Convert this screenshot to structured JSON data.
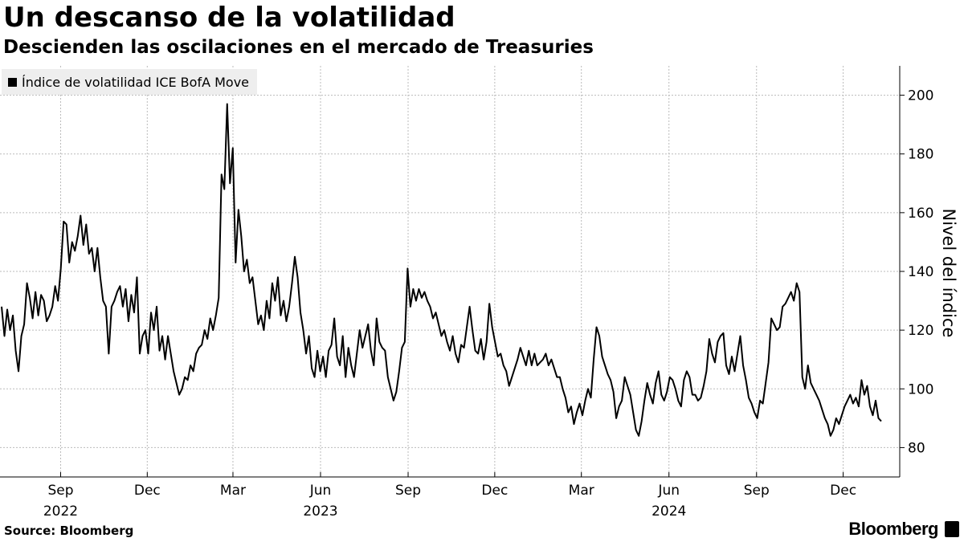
{
  "chart_data": {
    "type": "line",
    "title": "Un descanso de la volatilidad",
    "subtitle": "Descienden las oscilaciones en el mercado de Treasuries",
    "ylabel": "Nivel del índice",
    "xlabel": "",
    "ylim": [
      70,
      210
    ],
    "yticks": [
      80,
      100,
      120,
      140,
      160,
      180,
      200
    ],
    "y_axis_side": "right",
    "grid": true,
    "legend_position": "top-left",
    "series": [
      {
        "name": "Índice de volatilidad ICE BofA Move",
        "x_start": "2022-07-01",
        "x_end": "2025-01-10",
        "values": [
          128,
          118,
          127,
          120,
          125,
          113,
          106,
          118,
          122,
          136,
          131,
          124,
          133,
          125,
          132,
          130,
          123,
          125,
          128,
          135,
          130,
          141,
          157,
          156,
          143,
          150,
          147,
          152,
          159,
          149,
          156,
          146,
          148,
          140,
          148,
          138,
          130,
          128,
          112,
          128,
          130,
          133,
          135,
          128,
          134,
          123,
          132,
          126,
          138,
          112,
          118,
          120,
          112,
          126,
          120,
          128,
          113,
          118,
          110,
          118,
          112,
          106,
          102,
          98,
          100,
          104,
          103,
          108,
          106,
          112,
          114,
          115,
          120,
          117,
          124,
          120,
          125,
          131,
          173,
          168,
          197,
          170,
          182,
          143,
          161,
          152,
          140,
          144,
          136,
          138,
          130,
          122,
          125,
          120,
          130,
          124,
          136,
          130,
          138,
          125,
          130,
          123,
          128,
          136,
          145,
          138,
          126,
          120,
          112,
          118,
          107,
          104,
          113,
          106,
          111,
          104,
          113,
          115,
          124,
          111,
          108,
          118,
          104,
          114,
          108,
          104,
          112,
          120,
          114,
          118,
          122,
          113,
          108,
          124,
          116,
          114,
          113,
          104,
          100,
          96,
          99,
          106,
          114,
          116,
          141,
          128,
          134,
          130,
          134,
          131,
          133,
          130,
          128,
          124,
          126,
          122,
          118,
          120,
          116,
          113,
          118,
          112,
          109,
          115,
          114,
          121,
          128,
          120,
          113,
          112,
          117,
          110,
          116,
          129,
          121,
          116,
          111,
          112,
          108,
          106,
          101,
          104,
          107,
          110,
          114,
          111,
          108,
          113,
          108,
          112,
          108,
          109,
          110,
          112,
          108,
          110,
          107,
          104,
          104,
          100,
          97,
          92,
          94,
          88,
          92,
          95,
          91,
          96,
          100,
          97,
          110,
          121,
          118,
          111,
          108,
          105,
          103,
          99,
          90,
          94,
          96,
          104,
          101,
          98,
          92,
          86,
          84,
          89,
          96,
          102,
          98,
          95,
          102,
          106,
          98,
          96,
          99,
          104,
          103,
          100,
          96,
          94,
          103,
          106,
          104,
          98,
          98,
          96,
          97,
          101,
          106,
          117,
          112,
          109,
          116,
          118,
          119,
          108,
          105,
          111,
          106,
          112,
          118,
          108,
          103,
          97,
          95,
          92,
          90,
          96,
          95,
          102,
          109,
          124,
          122,
          120,
          121,
          128,
          129,
          131,
          133,
          130,
          136,
          133,
          104,
          100,
          108,
          102,
          100,
          98,
          96,
          93,
          90,
          88,
          84,
          86,
          90,
          88,
          91,
          94,
          96,
          98,
          95,
          97,
          94,
          103,
          98,
          101,
          94,
          91,
          96,
          90,
          89
        ]
      }
    ],
    "x_tick_labels": [
      {
        "label": "Sep",
        "date": "2022-09-01"
      },
      {
        "label": "Dec",
        "date": "2022-12-01"
      },
      {
        "label": "Mar",
        "date": "2023-03-01"
      },
      {
        "label": "Jun",
        "date": "2023-06-01"
      },
      {
        "label": "Sep",
        "date": "2023-09-01"
      },
      {
        "label": "Dec",
        "date": "2023-12-01"
      },
      {
        "label": "Mar",
        "date": "2024-03-01"
      },
      {
        "label": "Jun",
        "date": "2024-06-01"
      },
      {
        "label": "Sep",
        "date": "2024-09-01"
      },
      {
        "label": "Dec",
        "date": "2024-12-01"
      }
    ],
    "year_labels": [
      {
        "label": "2022",
        "date": "2022-09-01"
      },
      {
        "label": "2023",
        "date": "2023-06-01"
      },
      {
        "label": "2024",
        "date": "2024-06-01"
      }
    ],
    "colors": {
      "line": "#000000",
      "grid": "#bbbbbb",
      "axis": "#000000",
      "legend_bg": "#eeeeee"
    }
  },
  "footer": {
    "source": "Source: Bloomberg",
    "brand": "Bloomberg"
  }
}
